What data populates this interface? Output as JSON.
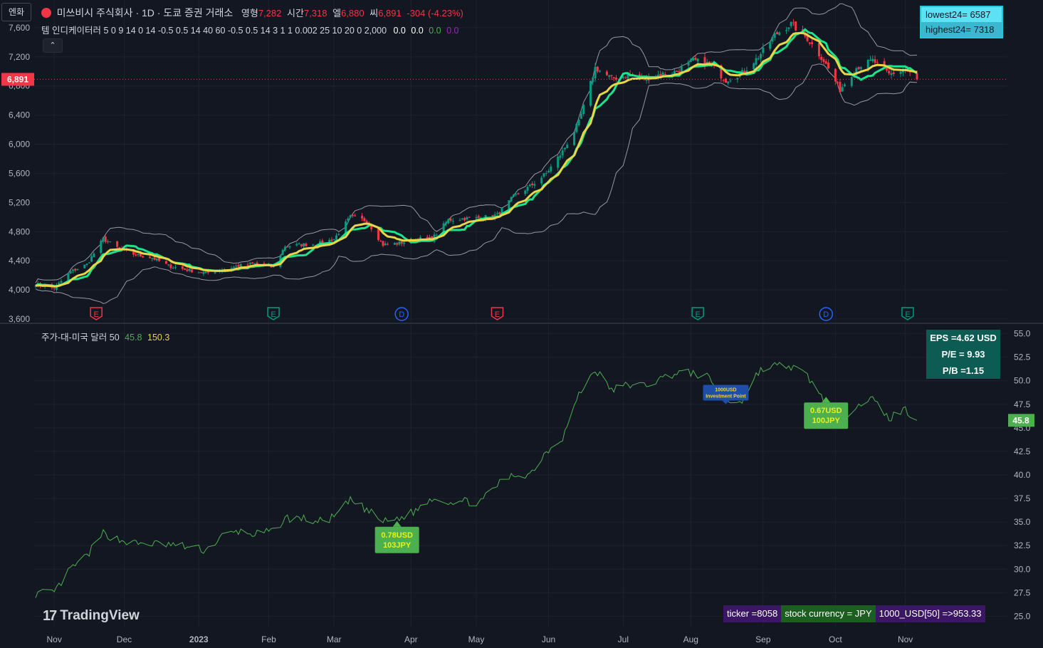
{
  "currency_button": "엔화",
  "header": {
    "title": "미쓰비시 주식회사 · 1D · 도쿄 증권 거래소",
    "o_label": "영형",
    "o_value": "7,282",
    "h_label": "시간",
    "h_value": "7,318",
    "l_label": "엘",
    "l_value": "6,880",
    "c_label": "씨",
    "c_value": "6,891",
    "change": "-304 (-4.23%)"
  },
  "indicator": {
    "name": "템 인디케이터러",
    "params": "5 0 9 14 0 14 -0.5 0.5 14 40 60 -0.5 0.5 14 3 1 1 0.002 25 10 20 0 2,000",
    "v1": "0.0",
    "v2": "0.0",
    "v3": "0.0",
    "v4": "0.0"
  },
  "collapse_icon": "chevron-up-icon",
  "lowhigh": {
    "low": "lowest24= 6587",
    "high": "highest24= 7318"
  },
  "price_axis": {
    "ticks": [
      "7,600",
      "7,200",
      "6,800",
      "6,400",
      "6,000",
      "5,600",
      "5,200",
      "4,800",
      "4,400",
      "4,000",
      "3,600"
    ],
    "range": [
      3600,
      8000
    ]
  },
  "last_price_tag": "6,891",
  "event_markers": [
    {
      "type": "E",
      "color": "#f23645",
      "date": "Nov 19"
    },
    {
      "type": "E",
      "color": "#089981",
      "date": "Feb 3"
    },
    {
      "type": "D",
      "color": "#2962ff",
      "date": "Mar 30"
    },
    {
      "type": "E",
      "color": "#f23645",
      "date": "May 10"
    },
    {
      "type": "E",
      "color": "#089981",
      "date": "Aug 4"
    },
    {
      "type": "D",
      "color": "#2962ff",
      "date": "Sep 28"
    },
    {
      "type": "E",
      "color": "#089981",
      "date": "Nov 2"
    }
  ],
  "lower_legend": {
    "name": "주가-대-미국 달러 50",
    "v1": "45.8",
    "v2": "150.3"
  },
  "lower_axis": {
    "ticks": [
      "55.0",
      "52.5",
      "50.0",
      "47.5",
      "45.0",
      "42.5",
      "40.0",
      "37.5",
      "35.0",
      "32.5",
      "30.0",
      "27.5",
      "25.0"
    ],
    "range": [
      24.5,
      55.5
    ]
  },
  "lower_last_tag": "45.8",
  "fundamentals": {
    "eps": "EPS  =4.62 USD",
    "pe": "P/E = 9.93",
    "pb": "P/B =1.15"
  },
  "callouts": [
    {
      "line1": "0.78USD",
      "line2": "103JPY",
      "date": "Mar 28",
      "value": 35.1
    },
    {
      "line1": "0.67USD",
      "line2": "100JPY",
      "date": "Sep 28",
      "value": 48.3
    },
    {
      "line1": "1000USD",
      "line2": "Investment Point",
      "date": "Aug 16",
      "value": 48.2
    }
  ],
  "footer_table": {
    "ticker": "ticker  =8058",
    "currency": "stock currency = JPY",
    "usd": "1000_USD[50] =>953.33"
  },
  "logo": "TradingView",
  "time_axis": [
    "Nov",
    "Dec",
    "2023",
    "Feb",
    "Mar",
    "Apr",
    "May",
    "Jun",
    "Jul",
    "Aug",
    "Sep",
    "Oct",
    "Nov"
  ],
  "chart_data": [
    {
      "type": "candlestick",
      "title": "미쓰비시 주식회사 · 1D · 도쿄 증권 거래소",
      "x_start": "2022-10-24",
      "x_end": "2023-11-06",
      "ylim": [
        3600,
        8000
      ],
      "close_anchors": [
        [
          "2022-10-24",
          4080
        ],
        [
          "2022-11-01",
          4020
        ],
        [
          "2022-11-08",
          4250
        ],
        [
          "2022-11-15",
          4350
        ],
        [
          "2022-11-22",
          4700
        ],
        [
          "2022-11-29",
          4560
        ],
        [
          "2022-12-06",
          4480
        ],
        [
          "2022-12-13",
          4440
        ],
        [
          "2022-12-20",
          4330
        ],
        [
          "2022-12-27",
          4280
        ],
        [
          "2023-01-05",
          4230
        ],
        [
          "2023-01-12",
          4280
        ],
        [
          "2023-01-19",
          4330
        ],
        [
          "2023-01-26",
          4360
        ],
        [
          "2023-02-03",
          4310
        ],
        [
          "2023-02-08",
          4600
        ],
        [
          "2023-02-15",
          4620
        ],
        [
          "2023-02-22",
          4630
        ],
        [
          "2023-03-01",
          4700
        ],
        [
          "2023-03-08",
          5000
        ],
        [
          "2023-03-15",
          4950
        ],
        [
          "2023-03-22",
          4620
        ],
        [
          "2023-03-29",
          4640
        ],
        [
          "2023-04-05",
          4700
        ],
        [
          "2023-04-12",
          4700
        ],
        [
          "2023-04-19",
          4960
        ],
        [
          "2023-04-26",
          4980
        ],
        [
          "2023-05-03",
          4990
        ],
        [
          "2023-05-10",
          5030
        ],
        [
          "2023-05-17",
          5280
        ],
        [
          "2023-05-24",
          5420
        ],
        [
          "2023-05-31",
          5600
        ],
        [
          "2023-06-07",
          5900
        ],
        [
          "2023-06-14",
          6300
        ],
        [
          "2023-06-21",
          7050
        ],
        [
          "2023-06-28",
          6900
        ],
        [
          "2023-07-05",
          6950
        ],
        [
          "2023-07-12",
          6900
        ],
        [
          "2023-07-19",
          6960
        ],
        [
          "2023-07-26",
          7000
        ],
        [
          "2023-08-02",
          7150
        ],
        [
          "2023-08-09",
          7100
        ],
        [
          "2023-08-16",
          6880
        ],
        [
          "2023-08-23",
          6980
        ],
        [
          "2023-08-30",
          7200
        ],
        [
          "2023-09-06",
          7500
        ],
        [
          "2023-09-13",
          7650
        ],
        [
          "2023-09-20",
          7450
        ],
        [
          "2023-09-27",
          7150
        ],
        [
          "2023-10-04",
          6750
        ],
        [
          "2023-10-11",
          7050
        ],
        [
          "2023-10-18",
          7150
        ],
        [
          "2023-10-25",
          6960
        ],
        [
          "2023-11-01",
          7020
        ],
        [
          "2023-11-06",
          6891
        ]
      ],
      "lines": [
        {
          "name": "upper band",
          "color": "#9598a1"
        },
        {
          "name": "lower band",
          "color": "#9598a1"
        },
        {
          "name": "smooth average",
          "color": "#e9d546"
        },
        {
          "name": "step average",
          "color": "#1de38a"
        }
      ]
    },
    {
      "type": "line",
      "title": "주가-대-미국 달러 50",
      "ylim": [
        24.5,
        55.5
      ],
      "color": "#4caf50",
      "anchors": [
        [
          "2022-10-24",
          27.4
        ],
        [
          "2022-11-01",
          27.5
        ],
        [
          "2022-11-08",
          30.0
        ],
        [
          "2022-11-15",
          31.4
        ],
        [
          "2022-11-22",
          33.8
        ],
        [
          "2022-11-29",
          33.1
        ],
        [
          "2022-12-06",
          32.7
        ],
        [
          "2022-12-13",
          32.7
        ],
        [
          "2022-12-20",
          32.6
        ],
        [
          "2022-12-27",
          32.4
        ],
        [
          "2023-01-05",
          32.0
        ],
        [
          "2023-01-12",
          33.5
        ],
        [
          "2023-01-19",
          34.0
        ],
        [
          "2023-01-26",
          33.7
        ],
        [
          "2023-02-03",
          34.0
        ],
        [
          "2023-02-08",
          35.4
        ],
        [
          "2023-02-15",
          35.4
        ],
        [
          "2023-02-22",
          35.0
        ],
        [
          "2023-03-01",
          35.5
        ],
        [
          "2023-03-08",
          37.3
        ],
        [
          "2023-03-15",
          36.3
        ],
        [
          "2023-03-22",
          35.0
        ],
        [
          "2023-03-29",
          35.4
        ],
        [
          "2023-04-05",
          36.2
        ],
        [
          "2023-04-12",
          37.6
        ],
        [
          "2023-04-19",
          37.2
        ],
        [
          "2023-04-26",
          37.2
        ],
        [
          "2023-05-03",
          37.1
        ],
        [
          "2023-05-10",
          39.0
        ],
        [
          "2023-05-17",
          40.0
        ],
        [
          "2023-05-24",
          40.1
        ],
        [
          "2023-05-31",
          42.5
        ],
        [
          "2023-06-07",
          44.0
        ],
        [
          "2023-06-14",
          48.5
        ],
        [
          "2023-06-21",
          51.2
        ],
        [
          "2023-06-28",
          49.0
        ],
        [
          "2023-07-05",
          49.6
        ],
        [
          "2023-07-12",
          49.5
        ],
        [
          "2023-07-19",
          50.2
        ],
        [
          "2023-07-26",
          50.9
        ],
        [
          "2023-08-02",
          50.8
        ],
        [
          "2023-08-09",
          50.3
        ],
        [
          "2023-08-16",
          47.8
        ],
        [
          "2023-08-23",
          47.9
        ],
        [
          "2023-08-30",
          51.0
        ],
        [
          "2023-09-06",
          51.6
        ],
        [
          "2023-09-13",
          51.5
        ],
        [
          "2023-09-20",
          50.5
        ],
        [
          "2023-09-27",
          48.0
        ],
        [
          "2023-10-04",
          45.8
        ],
        [
          "2023-10-11",
          47.5
        ],
        [
          "2023-10-18",
          48.0
        ],
        [
          "2023-10-25",
          46.0
        ],
        [
          "2023-11-01",
          47.0
        ],
        [
          "2023-11-06",
          45.8
        ]
      ]
    }
  ]
}
